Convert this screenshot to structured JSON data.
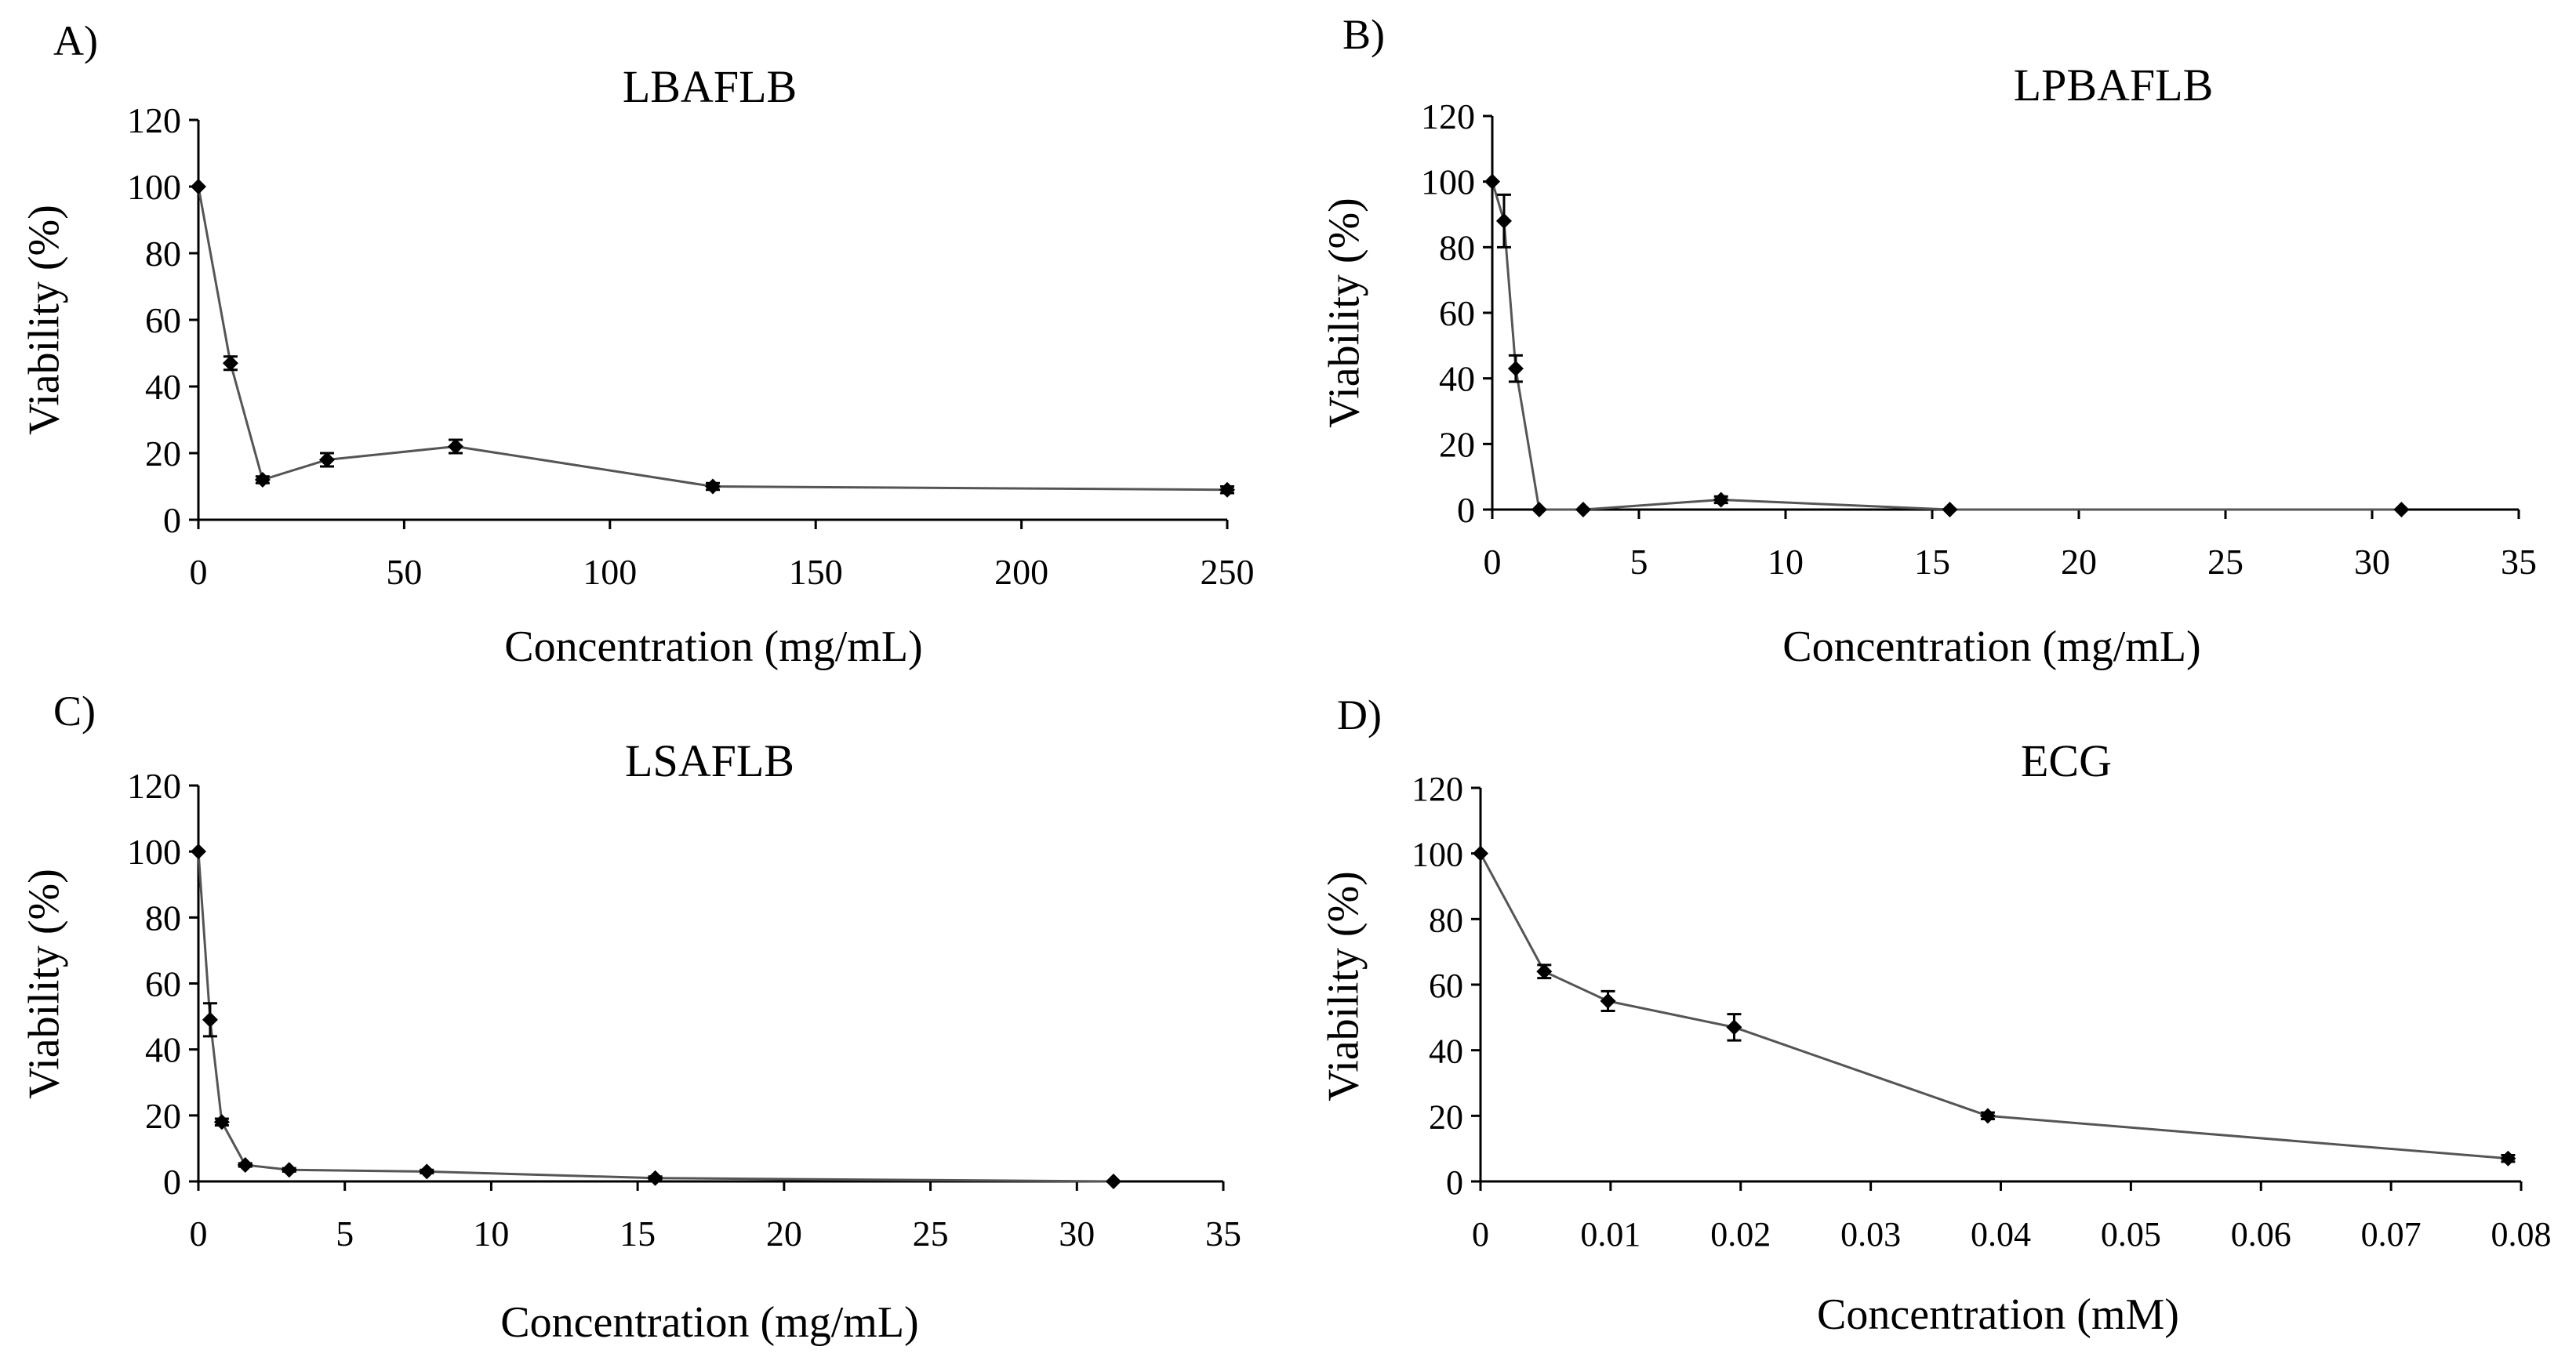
{
  "chart_data": [
    {
      "type": "line",
      "panel_label": "A)",
      "title": "LBAFLB",
      "xlabel": "Concentration (mg/mL)",
      "ylabel": "Viability (%)",
      "xlim": [
        0,
        250
      ],
      "ylim": [
        0,
        120
      ],
      "xticks": [
        0,
        50,
        100,
        150,
        200,
        250
      ],
      "xtick_labels": [
        "0",
        "50",
        "100",
        "150",
        "200",
        "250"
      ],
      "yticks": [
        0,
        20,
        40,
        60,
        80,
        100,
        120
      ],
      "ytick_labels": [
        "0",
        "20",
        "40",
        "60",
        "80",
        "100",
        "120"
      ],
      "grid": false,
      "series": [
        {
          "x": [
            0,
            7.8,
            15.6,
            31.25,
            62.5,
            125,
            250
          ],
          "y": [
            100,
            47,
            12,
            18,
            22,
            10,
            9
          ],
          "error": [
            0,
            2,
            1,
            2,
            2,
            1,
            1
          ]
        }
      ]
    },
    {
      "type": "line",
      "panel_label": "B)",
      "title": "LPBAFLB",
      "xlabel": "Concentration (mg/mL)",
      "ylabel": "Viability (%)",
      "xlim": [
        0,
        35
      ],
      "ylim": [
        0,
        120
      ],
      "xticks": [
        0,
        5,
        10,
        15,
        20,
        25,
        30,
        35
      ],
      "xtick_labels": [
        "0",
        "5",
        "10",
        "15",
        "20",
        "25",
        "30",
        "35"
      ],
      "yticks": [
        0,
        20,
        40,
        60,
        80,
        100,
        120
      ],
      "ytick_labels": [
        "0",
        "20",
        "40",
        "60",
        "80",
        "100",
        "120"
      ],
      "grid": false,
      "series": [
        {
          "x": [
            0,
            0.4,
            0.8,
            1.6,
            3.1,
            7.8,
            15.6,
            31.0
          ],
          "y": [
            100,
            88,
            43,
            0,
            0,
            3,
            0,
            0
          ],
          "error": [
            0,
            8,
            4,
            0,
            0,
            1,
            0,
            0
          ]
        }
      ]
    },
    {
      "type": "line",
      "panel_label": "C)",
      "title": "LSAFLB",
      "xlabel": "Concentration (mg/mL)",
      "ylabel": "Viability (%)",
      "xlim": [
        0,
        35
      ],
      "ylim": [
        0,
        120
      ],
      "xticks": [
        0,
        5,
        10,
        15,
        20,
        25,
        30,
        35
      ],
      "xtick_labels": [
        "0",
        "5",
        "10",
        "15",
        "20",
        "25",
        "30",
        "35"
      ],
      "yticks": [
        0,
        20,
        40,
        60,
        80,
        100,
        120
      ],
      "ytick_labels": [
        "0",
        "20",
        "40",
        "60",
        "80",
        "100",
        "120"
      ],
      "grid": false,
      "series": [
        {
          "x": [
            0,
            0.4,
            0.8,
            1.6,
            3.1,
            7.8,
            15.6,
            31.25
          ],
          "y": [
            100,
            49,
            18,
            5,
            3.5,
            3,
            1,
            0
          ],
          "error": [
            0,
            5,
            1,
            0.5,
            0.5,
            0.5,
            0.5,
            0
          ]
        }
      ]
    },
    {
      "type": "line",
      "panel_label": "D)",
      "title": "ECG",
      "xlabel": "Concentration (mM)",
      "ylabel": "Viability (%)",
      "xlim": [
        0,
        0.08
      ],
      "ylim": [
        0,
        120
      ],
      "xticks": [
        0,
        0.01,
        0.02,
        0.03,
        0.04,
        0.05,
        0.06,
        0.07,
        0.08
      ],
      "xtick_labels": [
        "0",
        "0.01",
        "0.02",
        "0.03",
        "0.04",
        "0.05",
        "0.06",
        "0.07",
        "0.08"
      ],
      "yticks": [
        0,
        20,
        40,
        60,
        80,
        100,
        120
      ],
      "ytick_labels": [
        "0",
        "20",
        "40",
        "60",
        "80",
        "100",
        "120"
      ],
      "grid": false,
      "series": [
        {
          "x": [
            0,
            0.0049,
            0.0098,
            0.0195,
            0.039,
            0.079
          ],
          "y": [
            100,
            64,
            55,
            47,
            20,
            7
          ],
          "error": [
            0,
            2,
            3,
            4,
            1,
            1
          ]
        }
      ]
    }
  ]
}
